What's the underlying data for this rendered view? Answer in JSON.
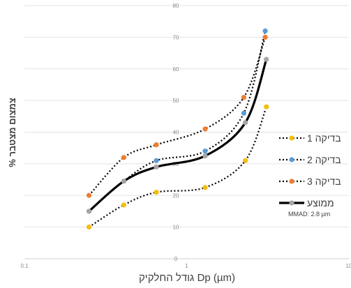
{
  "chart_data": {
    "type": "line",
    "xlabel": "גודל החלקיק Dp (µm)",
    "ylabel": "% צמצום מצטבר",
    "xscale": "log",
    "xlim": [
      0.1,
      10
    ],
    "ylim": [
      0,
      80
    ],
    "x_ticks": [
      "0.1",
      "1",
      "10"
    ],
    "y_ticks": [
      "0",
      "10",
      "20",
      "30",
      "40",
      "50",
      "60",
      "70",
      "80"
    ],
    "grid": "horizontal",
    "legend_position": "right",
    "series": [
      {
        "name": "בדיקה 1",
        "color": "#f5bd12",
        "style": "dotted",
        "marker": "circle",
        "x": [
          0.25,
          0.41,
          0.65,
          1.3,
          2.3,
          3.1
        ],
        "y": [
          10,
          17,
          21,
          22.5,
          31,
          48
        ]
      },
      {
        "name": "בדיקה 2",
        "color": "#5b9bd5",
        "style": "dotted",
        "marker": "circle",
        "x": [
          0.25,
          0.41,
          0.65,
          1.3,
          2.25,
          3.05
        ],
        "y": [
          15,
          24.5,
          31,
          34,
          46,
          72
        ]
      },
      {
        "name": "בדיקה 3",
        "color": "#ed7d31",
        "style": "dotted",
        "marker": "circle",
        "x": [
          0.25,
          0.41,
          0.65,
          1.3,
          2.25,
          3.05
        ],
        "y": [
          20,
          32,
          36,
          41,
          51,
          70
        ]
      },
      {
        "name": "ממוצע",
        "color": "#000000",
        "style": "solid",
        "marker": "circle",
        "marker_color": "#a5a5a5",
        "x": [
          0.25,
          0.41,
          0.65,
          1.3,
          2.3,
          3.1
        ],
        "y": [
          15,
          24.5,
          29,
          32.5,
          43,
          63
        ]
      }
    ],
    "annotation": "MMAD: 2.8 µm"
  }
}
